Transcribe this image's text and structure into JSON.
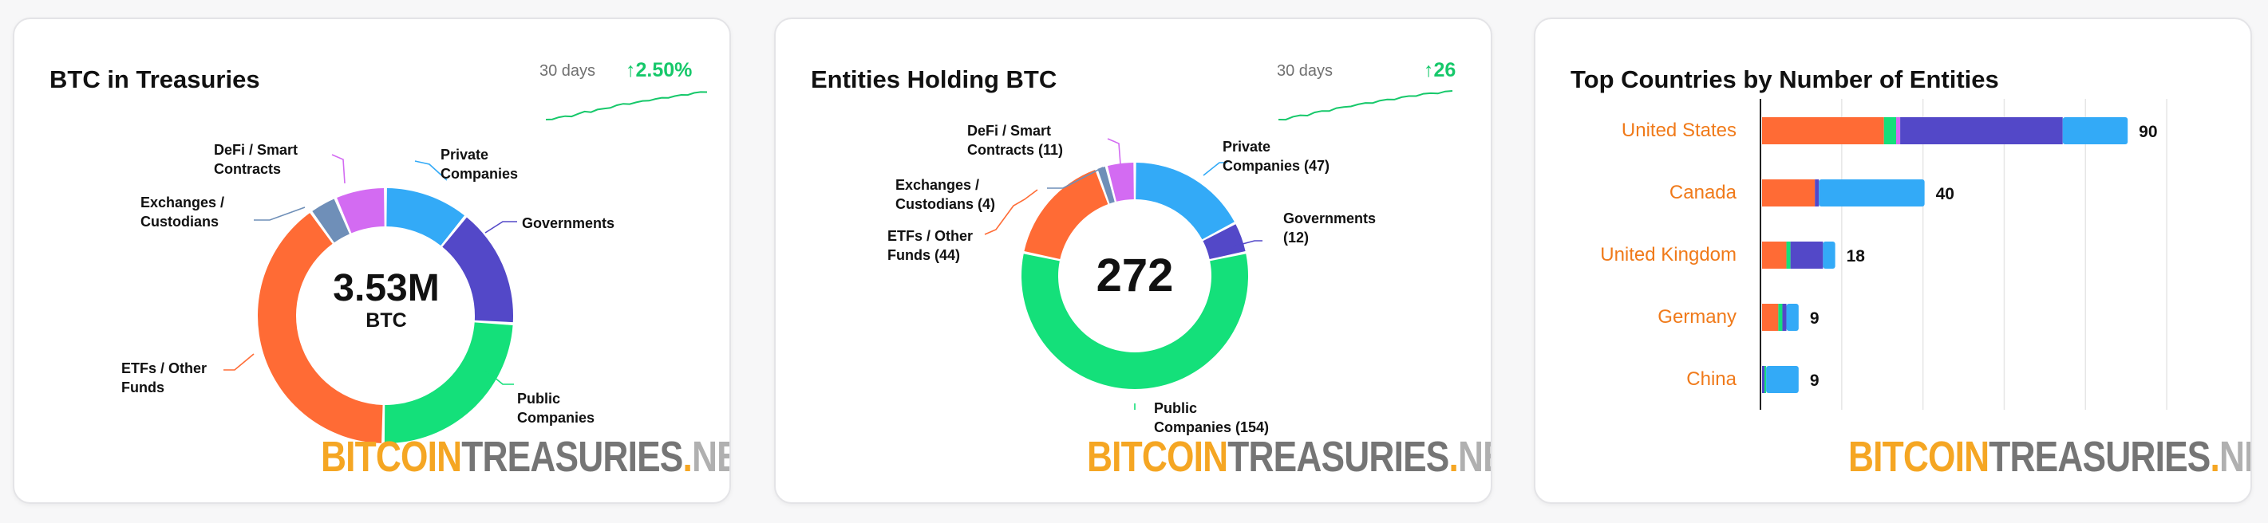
{
  "cards": [
    {
      "title": "BTC in Treasuries",
      "period": "30 days",
      "delta": "2.50%",
      "delta_arrow": "↑",
      "center_value": "3.53M",
      "center_unit": "BTC"
    },
    {
      "title": "Entities Holding BTC",
      "period": "30 days",
      "delta": "26",
      "delta_arrow": "↑",
      "center_value": "272"
    },
    {
      "title": "Top Countries by Number of Entities"
    }
  ],
  "brand": {
    "part1": "BITCOIN",
    "part2": "TREASURIES",
    "part3": ".",
    "part4": "NET"
  },
  "colors": {
    "private": "#33aaf7",
    "governments": "#5348c8",
    "public": "#14e07a",
    "etfs": "#ff6b35",
    "exchanges": "#6f8fb8",
    "defi": "#d36bf2",
    "delta_green": "#16c86a",
    "country_label": "#f07a1a"
  },
  "chart_data": [
    {
      "type": "pie",
      "title": "BTC in Treasuries",
      "labels": [
        "Private Companies",
        "Governments",
        "Public Companies",
        "ETFs / Other Funds",
        "Exchanges / Custodians",
        "DeFi / Smart Contracts"
      ],
      "values": [
        0.108,
        0.152,
        0.243,
        0.398,
        0.035,
        0.064
      ],
      "center_text": "3.53M BTC",
      "sparkline": [
        0,
        0.05,
        0.08,
        0.12,
        0.15,
        0.2,
        0.28,
        0.3,
        0.35,
        0.38,
        0.45,
        0.5,
        0.55,
        0.58,
        0.6,
        0.65,
        0.7,
        0.72,
        0.76,
        0.8,
        0.82,
        0.86,
        0.9,
        0.93,
        0.96,
        1.0
      ]
    },
    {
      "type": "pie",
      "title": "Entities Holding BTC",
      "labels": [
        "Private Companies (47)",
        "Governments (12)",
        "Public Companies (154)",
        "ETFs / Other Funds (44)",
        "Exchanges / Custodians (4)",
        "DeFi / Smart Contracts (11)"
      ],
      "values": [
        47,
        12,
        154,
        44,
        4,
        11
      ],
      "center_text": "272",
      "sparkline": [
        0,
        0.04,
        0.1,
        0.15,
        0.18,
        0.25,
        0.3,
        0.34,
        0.4,
        0.44,
        0.5,
        0.53,
        0.58,
        0.62,
        0.66,
        0.7,
        0.74,
        0.78,
        0.82,
        0.86,
        0.9,
        0.92,
        0.95,
        0.98,
        1.0
      ]
    },
    {
      "type": "bar",
      "title": "Top Countries by Number of Entities",
      "categories": [
        "United States",
        "Canada",
        "United Kingdom",
        "Germany",
        "China"
      ],
      "totals": [
        90,
        40,
        18,
        9,
        9
      ],
      "series": [
        {
          "key": "governments",
          "values": [
            0,
            0,
            0,
            0,
            0.6
          ]
        },
        {
          "key": "etfs",
          "values": [
            30,
            13,
            6,
            4,
            0
          ]
        },
        {
          "key": "public",
          "values": [
            3,
            0,
            1,
            1,
            0.4
          ]
        },
        {
          "key": "defi",
          "values": [
            1,
            0,
            0,
            0,
            0
          ]
        },
        {
          "key": "governments",
          "values": [
            40,
            1,
            8,
            1,
            0
          ]
        },
        {
          "key": "private",
          "values": [
            90,
            40,
            18,
            9,
            9
          ]
        }
      ],
      "xlim": [
        0,
        110
      ]
    }
  ]
}
